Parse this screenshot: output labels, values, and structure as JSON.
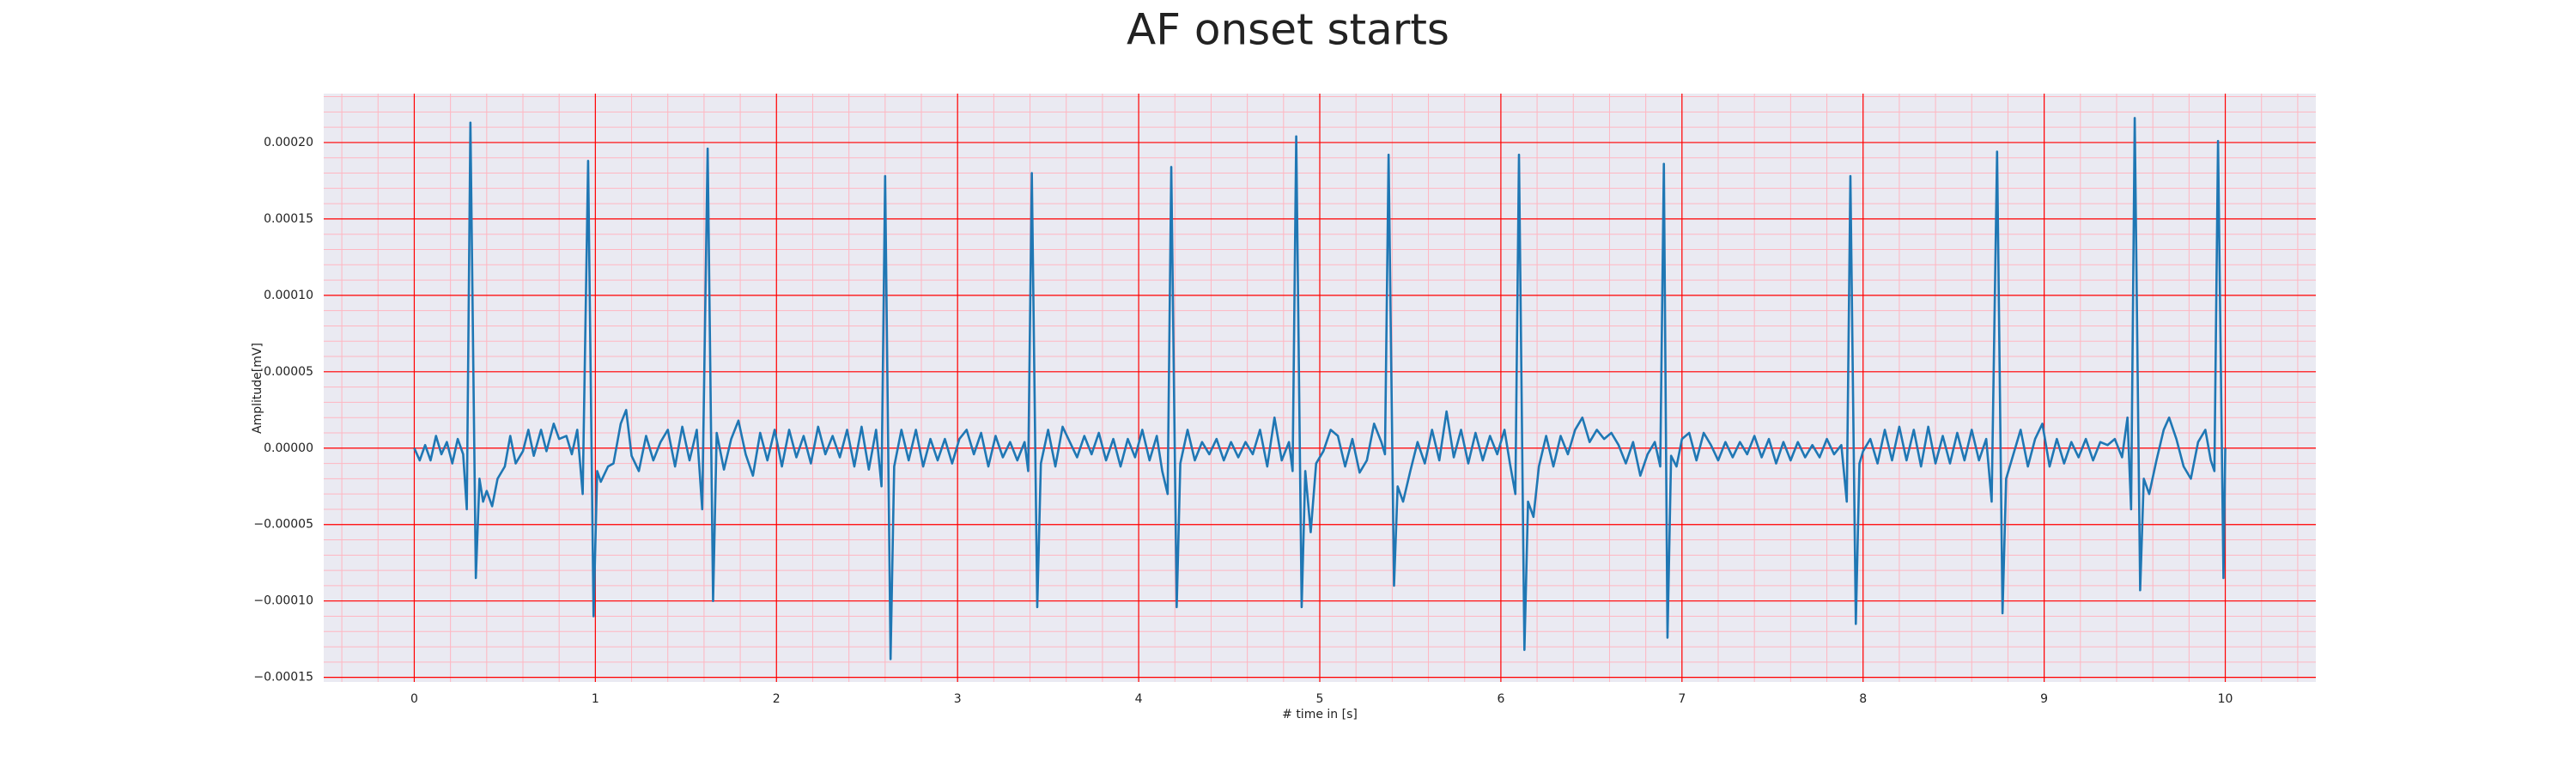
{
  "chart_data": {
    "type": "line",
    "title": "AF onset starts",
    "xlabel": "# time in [s]",
    "ylabel": "Amplitude[mV]",
    "color": "#1f77b4",
    "background": "#eaeaf2",
    "grid": true,
    "grid_color": "#ff0000",
    "minor_grid": true,
    "minor_grid_color": "#ffb6c1",
    "xlim": [
      -0.5,
      10.5
    ],
    "ylim": [
      -0.000153,
      0.000232
    ],
    "xticks": [
      0,
      1,
      2,
      3,
      4,
      5,
      6,
      7,
      8,
      9,
      10
    ],
    "yticks": [
      {
        "value": -0.00015,
        "label": "−0.00015"
      },
      {
        "value": -0.0001,
        "label": "−0.00010"
      },
      {
        "value": -5e-05,
        "label": "−0.00005"
      },
      {
        "value": 0,
        "label": "0.00000"
      },
      {
        "value": 5e-05,
        "label": "0.00005"
      },
      {
        "value": 0.0001,
        "label": "0.00010"
      },
      {
        "value": 0.00015,
        "label": "0.00015"
      },
      {
        "value": 0.0002,
        "label": "0.00020"
      }
    ],
    "x": [
      0,
      0.03,
      0.06,
      0.09,
      0.12,
      0.15,
      0.18,
      0.21,
      0.24,
      0.27,
      0.29,
      0.31,
      0.34,
      0.36,
      0.38,
      0.4,
      0.43,
      0.46,
      0.5,
      0.53,
      0.56,
      0.6,
      0.63,
      0.66,
      0.7,
      0.73,
      0.77,
      0.8,
      0.84,
      0.87,
      0.9,
      0.93,
      0.96,
      0.99,
      1.01,
      1.03,
      1.07,
      1.1,
      1.14,
      1.17,
      1.2,
      1.24,
      1.28,
      1.32,
      1.36,
      1.4,
      1.44,
      1.48,
      1.52,
      1.56,
      1.59,
      1.62,
      1.65,
      1.67,
      1.71,
      1.75,
      1.79,
      1.83,
      1.87,
      1.91,
      1.95,
      1.99,
      2.03,
      2.07,
      2.11,
      2.15,
      2.19,
      2.23,
      2.27,
      2.31,
      2.35,
      2.39,
      2.43,
      2.47,
      2.51,
      2.55,
      2.58,
      2.6,
      2.63,
      2.65,
      2.69,
      2.73,
      2.77,
      2.81,
      2.85,
      2.89,
      2.93,
      2.97,
      3.01,
      3.05,
      3.09,
      3.13,
      3.17,
      3.21,
      3.25,
      3.29,
      3.33,
      3.37,
      3.39,
      3.41,
      3.44,
      3.46,
      3.5,
      3.54,
      3.58,
      3.62,
      3.66,
      3.7,
      3.74,
      3.78,
      3.82,
      3.86,
      3.9,
      3.94,
      3.98,
      4.02,
      4.06,
      4.1,
      4.13,
      4.16,
      4.18,
      4.21,
      4.23,
      4.27,
      4.31,
      4.35,
      4.39,
      4.43,
      4.47,
      4.51,
      4.55,
      4.59,
      4.63,
      4.67,
      4.71,
      4.75,
      4.79,
      4.83,
      4.85,
      4.87,
      4.9,
      4.92,
      4.95,
      4.98,
      5.02,
      5.06,
      5.1,
      5.14,
      5.18,
      5.22,
      5.26,
      5.3,
      5.34,
      5.36,
      5.38,
      5.41,
      5.43,
      5.46,
      5.5,
      5.54,
      5.58,
      5.62,
      5.66,
      5.7,
      5.74,
      5.78,
      5.82,
      5.86,
      5.9,
      5.94,
      5.98,
      6.02,
      6.05,
      6.08,
      6.1,
      6.13,
      6.15,
      6.18,
      6.21,
      6.25,
      6.29,
      6.33,
      6.37,
      6.41,
      6.45,
      6.49,
      6.53,
      6.57,
      6.61,
      6.65,
      6.69,
      6.73,
      6.77,
      6.81,
      6.85,
      6.88,
      6.9,
      6.92,
      6.94,
      6.97,
      7.0,
      7.04,
      7.08,
      7.12,
      7.16,
      7.2,
      7.24,
      7.28,
      7.32,
      7.36,
      7.4,
      7.44,
      7.48,
      7.52,
      7.56,
      7.6,
      7.64,
      7.68,
      7.72,
      7.76,
      7.8,
      7.84,
      7.88,
      7.91,
      7.93,
      7.96,
      7.98,
      8.0,
      8.04,
      8.08,
      8.12,
      8.16,
      8.2,
      8.24,
      8.28,
      8.32,
      8.36,
      8.4,
      8.44,
      8.48,
      8.52,
      8.56,
      8.6,
      8.64,
      8.68,
      8.71,
      8.74,
      8.77,
      8.79,
      8.83,
      8.87,
      8.91,
      8.95,
      8.99,
      9.03,
      9.07,
      9.11,
      9.15,
      9.19,
      9.23,
      9.27,
      9.31,
      9.35,
      9.39,
      9.43,
      9.46,
      9.48,
      9.5,
      9.53,
      9.55,
      9.58,
      9.62,
      9.66,
      9.69,
      9.73,
      9.77,
      9.81,
      9.85,
      9.89,
      9.92,
      9.94,
      9.96,
      9.99,
      10.0
    ],
    "values": [
      0,
      -8e-06,
      2e-06,
      -8e-06,
      8e-06,
      -4e-06,
      4e-06,
      -1e-05,
      6e-06,
      -4e-06,
      -4e-05,
      0.000213,
      -8.5e-05,
      -2e-05,
      -3.5e-05,
      -2.8e-05,
      -3.8e-05,
      -2e-05,
      -1.2e-05,
      8e-06,
      -1e-05,
      -2e-06,
      1.2e-05,
      -5e-06,
      1.2e-05,
      -2e-06,
      1.6e-05,
      6e-06,
      8e-06,
      -4e-06,
      1.2e-05,
      -3e-05,
      0.000188,
      -0.00011,
      -1.5e-05,
      -2.2e-05,
      -1.2e-05,
      -1e-05,
      1.6e-05,
      2.5e-05,
      -5e-06,
      -1.5e-05,
      8e-06,
      -8e-06,
      4e-06,
      1.2e-05,
      -1.2e-05,
      1.4e-05,
      -8e-06,
      1.2e-05,
      -4e-05,
      0.000196,
      -0.0001,
      1e-05,
      -1.4e-05,
      6e-06,
      1.8e-05,
      -4e-06,
      -1.8e-05,
      1e-05,
      -8e-06,
      1.2e-05,
      -1.2e-05,
      1.2e-05,
      -6e-06,
      8e-06,
      -1e-05,
      1.4e-05,
      -4e-06,
      8e-06,
      -6e-06,
      1.2e-05,
      -1.2e-05,
      1.4e-05,
      -1.4e-05,
      1.2e-05,
      -2.5e-05,
      0.000178,
      -0.000138,
      -1.2e-05,
      1.2e-05,
      -8e-06,
      1.2e-05,
      -1.2e-05,
      6e-06,
      -8e-06,
      6e-06,
      -1e-05,
      6e-06,
      1.2e-05,
      -4e-06,
      1e-05,
      -1.2e-05,
      8e-06,
      -6e-06,
      4e-06,
      -8e-06,
      4e-06,
      -1.5e-05,
      0.00018,
      -0.000104,
      -1e-05,
      1.2e-05,
      -1.2e-05,
      1.4e-05,
      4e-06,
      -6e-06,
      8e-06,
      -4e-06,
      1e-05,
      -8e-06,
      6e-06,
      -1.2e-05,
      6e-06,
      -6e-06,
      1.2e-05,
      -8e-06,
      8e-06,
      -1.5e-05,
      -3e-05,
      0.000184,
      -0.000104,
      -1e-05,
      1.2e-05,
      -8e-06,
      4e-06,
      -4e-06,
      6e-06,
      -8e-06,
      4e-06,
      -6e-06,
      4e-06,
      -4e-06,
      1.2e-05,
      -1.2e-05,
      2e-05,
      -8e-06,
      4e-06,
      -1.5e-05,
      0.000204,
      -0.000104,
      -1.5e-05,
      -5.5e-05,
      -1e-05,
      -2e-06,
      1.2e-05,
      8e-06,
      -1.2e-05,
      6e-06,
      -1.6e-05,
      -8e-06,
      1.6e-05,
      4e-06,
      -4e-06,
      0.000192,
      -9e-05,
      -2.5e-05,
      -3.5e-05,
      -1.5e-05,
      4e-06,
      -1e-05,
      1.2e-05,
      -8e-06,
      2.4e-05,
      -6e-06,
      1.2e-05,
      -1e-05,
      1e-05,
      -8e-06,
      8e-06,
      -4e-06,
      1.2e-05,
      -1e-05,
      -3e-05,
      0.000192,
      -0.000132,
      -3.5e-05,
      -4.5e-05,
      -1.2e-05,
      8e-06,
      -1.2e-05,
      8e-06,
      -4e-06,
      1.2e-05,
      2e-05,
      4e-06,
      1.2e-05,
      6e-06,
      1e-05,
      2e-06,
      -1e-05,
      4e-06,
      -1.8e-05,
      -4e-06,
      4e-06,
      -1.2e-05,
      0.000186,
      -0.000124,
      -5e-06,
      -1.2e-05,
      6e-06,
      1e-05,
      -8e-06,
      1e-05,
      2e-06,
      -8e-06,
      4e-06,
      -6e-06,
      4e-06,
      -4e-06,
      8e-06,
      -6e-06,
      6e-06,
      -1e-05,
      4e-06,
      -8e-06,
      4e-06,
      -6e-06,
      2e-06,
      -6e-06,
      6e-06,
      -4e-06,
      2e-06,
      -3.5e-05,
      0.000178,
      -0.000115,
      -1e-05,
      -2e-06,
      6e-06,
      -1e-05,
      1.2e-05,
      -8e-06,
      1.4e-05,
      -8e-06,
      1.2e-05,
      -1.2e-05,
      1.4e-05,
      -1e-05,
      8e-06,
      -1e-05,
      1e-05,
      -8e-06,
      1.2e-05,
      -8e-06,
      6e-06,
      -3.5e-05,
      0.000194,
      -0.000108,
      -2e-05,
      -4e-06,
      1.2e-05,
      -1.2e-05,
      6e-06,
      1.6e-05,
      -1.2e-05,
      6e-06,
      -1e-05,
      4e-06,
      -6e-06,
      6e-06,
      -8e-06,
      4e-06,
      2e-06,
      6e-06,
      -6e-06,
      2e-05,
      -4e-05,
      0.000216,
      -9.3e-05,
      -2e-05,
      -3e-05,
      -8e-06,
      1.2e-05,
      2e-05,
      6e-06,
      -1.2e-05,
      -2e-05,
      4e-06,
      1.2e-05,
      -8e-06,
      -1.5e-05,
      0.000201,
      -8.5e-05,
      0
    ]
  }
}
